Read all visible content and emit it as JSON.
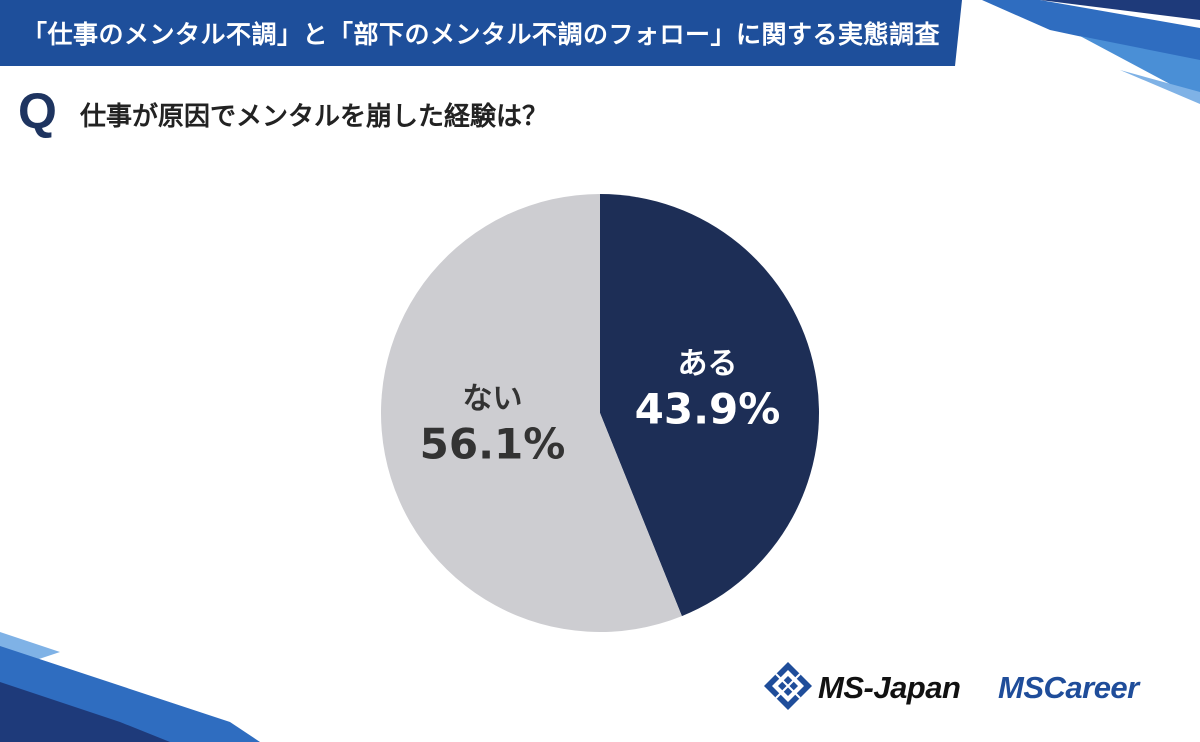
{
  "header": {
    "title": "「仕事のメンタル不調」と「部下のメンタル不調のフォロー」に関する実態調査"
  },
  "question": {
    "mark": "Q",
    "text": "仕事が原因でメンタルを崩した経験は？"
  },
  "chart_data": {
    "type": "pie",
    "slices": [
      {
        "label": "ある",
        "value": 43.9,
        "display": "43.9%",
        "color": "#1d2e56"
      },
      {
        "label": "ない",
        "value": 56.1,
        "display": "56.1%",
        "color": "#cdcdd1"
      }
    ],
    "start": "12 o'clock",
    "direction": "clockwise"
  },
  "logos": {
    "ms_japan": "MS-Japan",
    "ms_career": "MSCareer"
  },
  "colors": {
    "banner": "#1e4f9b",
    "accent_blue": "#2a6fc1",
    "dark_navy": "#1d2e56",
    "light_gray": "#cdcdd1"
  }
}
